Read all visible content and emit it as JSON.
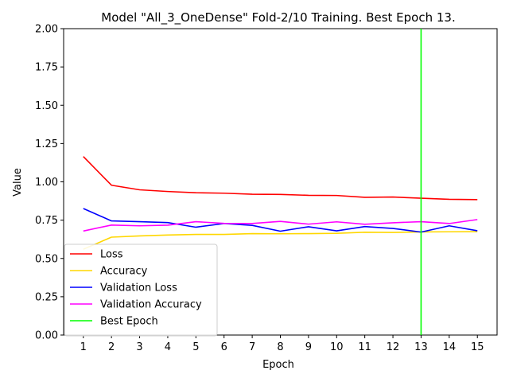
{
  "chart_data": {
    "type": "line",
    "title": "Model \"All_3_OneDense\" Fold-2/10 Training. Best Epoch 13.",
    "xlabel": "Epoch",
    "ylabel": "Value",
    "xlim": [
      0.3,
      15.7
    ],
    "ylim": [
      0,
      2
    ],
    "x": [
      1,
      2,
      3,
      4,
      5,
      6,
      7,
      8,
      9,
      10,
      11,
      12,
      13,
      14,
      15
    ],
    "x_ticks": [
      "1",
      "2",
      "3",
      "4",
      "5",
      "6",
      "7",
      "8",
      "9",
      "10",
      "11",
      "12",
      "13",
      "14",
      "15"
    ],
    "y_ticks": [
      "0.00",
      "0.25",
      "0.50",
      "0.75",
      "1.00",
      "1.25",
      "1.50",
      "1.75",
      "2.00"
    ],
    "grid": false,
    "legend_position": "lower-left",
    "series": [
      {
        "name": "Loss",
        "color": "#ff0000",
        "values": [
          1.165,
          0.978,
          0.948,
          0.937,
          0.929,
          0.926,
          0.919,
          0.918,
          0.912,
          0.911,
          0.899,
          0.901,
          0.893,
          0.886,
          0.884
        ]
      },
      {
        "name": "Accuracy",
        "color": "#ffd700",
        "values": [
          0.56,
          0.639,
          0.647,
          0.653,
          0.657,
          0.657,
          0.662,
          0.661,
          0.662,
          0.664,
          0.671,
          0.67,
          0.673,
          0.674,
          0.675
        ]
      },
      {
        "name": "Validation Loss",
        "color": "#0000ff",
        "values": [
          0.826,
          0.745,
          0.74,
          0.734,
          0.704,
          0.728,
          0.716,
          0.678,
          0.707,
          0.68,
          0.708,
          0.696,
          0.672,
          0.713,
          0.681
        ]
      },
      {
        "name": "Validation  Accuracy",
        "color": "#ff00ff",
        "values": [
          0.679,
          0.718,
          0.713,
          0.717,
          0.74,
          0.729,
          0.728,
          0.742,
          0.724,
          0.739,
          0.723,
          0.733,
          0.74,
          0.728,
          0.754
        ]
      }
    ],
    "best_epoch": {
      "name": "Best Epoch",
      "x": 13,
      "color": "#00ff00"
    }
  }
}
